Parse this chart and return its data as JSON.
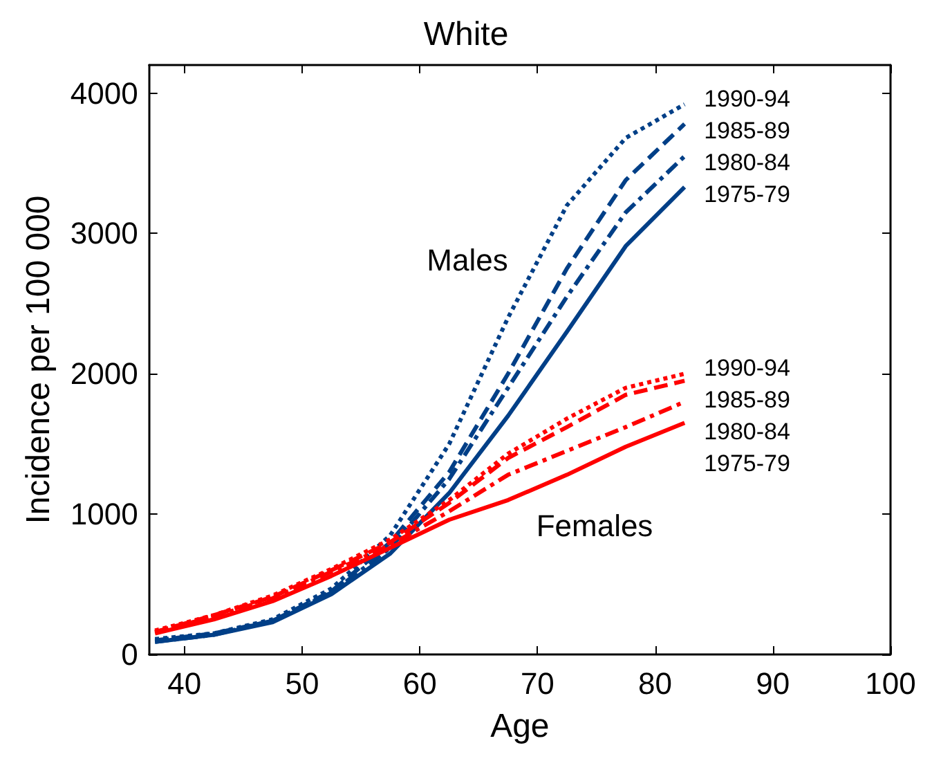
{
  "chart_data": {
    "type": "line",
    "title": "White",
    "xlabel": "Age",
    "ylabel": "Incidence per 100 000",
    "xlim": [
      37,
      100
    ],
    "xticks": [
      40,
      50,
      60,
      70,
      80,
      90,
      100
    ],
    "ylim": [
      0,
      4200
    ],
    "yticks": [
      0,
      1000,
      2000,
      3000,
      4000
    ],
    "grid": false,
    "legend": false,
    "marker": "none",
    "x": [
      37.5,
      42.5,
      47.5,
      52.5,
      57.5,
      62.5,
      67.5,
      72.5,
      77.5,
      82.5
    ],
    "series": [
      {
        "name": "1990-94",
        "color": "#003f87",
        "line_style": "dotted",
        "values": [
          110,
          150,
          250,
          470,
          850,
          1500,
          2400,
          3200,
          3680,
          3920
        ]
      },
      {
        "name": "1985-89",
        "color": "#003f87",
        "line_style": "dashed",
        "values": [
          100,
          150,
          240,
          450,
          800,
          1300,
          2000,
          2750,
          3380,
          3780
        ]
      },
      {
        "name": "1980-84",
        "color": "#003f87",
        "line_style": "dashdot",
        "values": [
          90,
          140,
          240,
          440,
          760,
          1250,
          1900,
          2550,
          3150,
          3550
        ]
      },
      {
        "name": "1975-79",
        "color": "#003f87",
        "line_style": "solid",
        "values": [
          90,
          140,
          230,
          430,
          720,
          1150,
          1700,
          2300,
          2910,
          3330
        ]
      },
      {
        "name": "1990-94",
        "color": "#ff0000",
        "line_style": "dotted",
        "values": [
          170,
          280,
          420,
          610,
          820,
          1100,
          1430,
          1680,
          1900,
          2000
        ]
      },
      {
        "name": "1985-89",
        "color": "#ff0000",
        "line_style": "dashed",
        "values": [
          160,
          280,
          410,
          600,
          800,
          1080,
          1400,
          1620,
          1850,
          1950
        ]
      },
      {
        "name": "1980-84",
        "color": "#ff0000",
        "line_style": "dashdot",
        "values": [
          160,
          270,
          400,
          590,
          780,
          1020,
          1280,
          1450,
          1620,
          1800
        ]
      },
      {
        "name": "1975-79",
        "color": "#ff0000",
        "line_style": "solid",
        "values": [
          150,
          250,
          380,
          560,
          760,
          960,
          1100,
          1280,
          1480,
          1650
        ]
      }
    ],
    "annotations": [
      "Males",
      "Females"
    ]
  }
}
